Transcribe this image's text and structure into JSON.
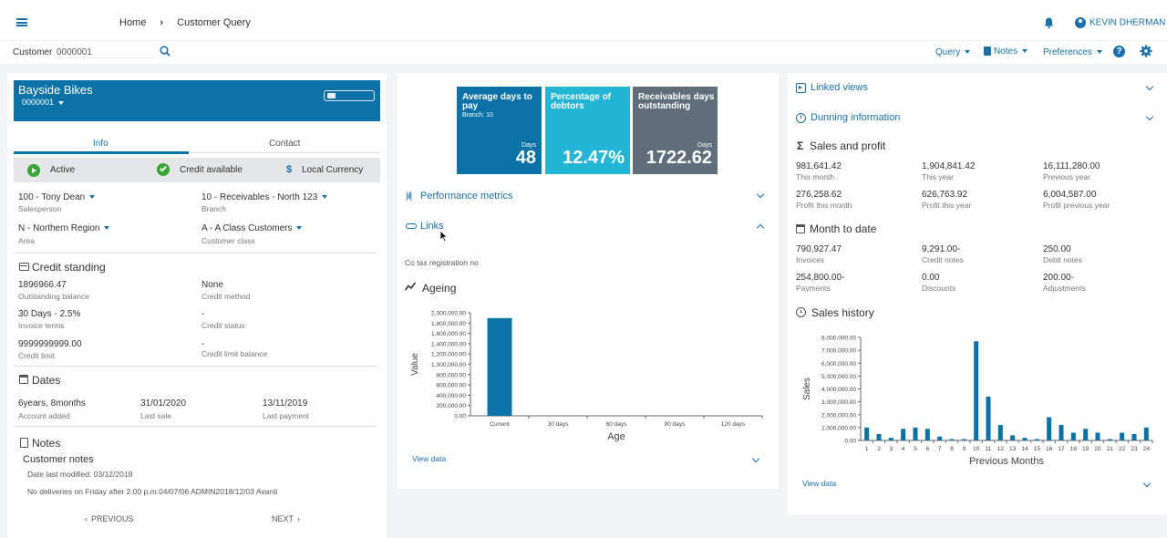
{
  "header": {
    "menu_icon": "hamburger-icon",
    "breadcrumb": [
      "Home",
      "Customer Query"
    ],
    "user_name": "KEVIN DHERMAN"
  },
  "search": {
    "label": "Customer",
    "value": "0000001"
  },
  "toolbar": {
    "query": "Query",
    "notes": "Notes",
    "preferences": "Preferences"
  },
  "customer": {
    "name": "Bayside Bikes",
    "code": "0000001",
    "tabs": [
      "Info",
      "Contact"
    ],
    "status": {
      "active": "Active",
      "credit": "Credit available",
      "currency": "Local Currency"
    },
    "salesperson": {
      "value": "100 - Tony Dean",
      "label": "Salesperson"
    },
    "branch": {
      "value": "10 - Receivables - North 123",
      "label": "Branch"
    },
    "area": {
      "value": "N - Northern Region",
      "label": "Area"
    },
    "customer_class": {
      "value": "A - A Class Customers",
      "label": "Customer class"
    }
  },
  "credit_standing": {
    "title": "Credit standing",
    "outstanding_balance": {
      "value": "1896966.47",
      "label": "Outstanding balance"
    },
    "credit_method": {
      "value": "None",
      "label": "Credit method"
    },
    "invoice_terms": {
      "value": "30 Days - 2.5%",
      "label": "Invoice terms"
    },
    "credit_status": {
      "value": "-",
      "label": "Credit status"
    },
    "credit_limit": {
      "value": "9999999999.00",
      "label": "Credit limit"
    },
    "credit_limit_balance": {
      "value": "-",
      "label": "Credit limit balance"
    }
  },
  "dates": {
    "title": "Dates",
    "account_added": {
      "value": "6years, 8months",
      "label": "Account added"
    },
    "last_sale": {
      "value": "31/01/2020",
      "label": "Last sale"
    },
    "last_payment": {
      "value": "13/11/2019",
      "label": "Last payment"
    }
  },
  "notes": {
    "title": "Notes",
    "subtitle": "Customer notes",
    "date_modified": "Date last modified: 03/12/2018",
    "text": "No deliveries on Friday after 2.00 p.m.04/07/06 ADMIN2018/12/03 Avanti"
  },
  "pager": {
    "previous": "PREVIOUS",
    "next": "NEXT"
  },
  "tiles": [
    {
      "title": "Average days to pay",
      "sub": "Branch: 10",
      "unit": "Days",
      "value": "48",
      "color": "#0b72a8"
    },
    {
      "title": "Percentage of debtors",
      "sub": "",
      "unit": "",
      "value": "12.47%",
      "color": "#22b5d6"
    },
    {
      "title": "Receivables days outstanding",
      "sub": "",
      "unit": "Days",
      "value": "1722.62",
      "color": "#5f6e7a"
    }
  ],
  "sections": {
    "performance": "Performance metrics",
    "links": "Links",
    "tax": "Co tax registration no",
    "ageing": "Ageing",
    "view_data": "View data"
  },
  "right": {
    "linked_views": "Linked views",
    "dunning": "Dunning information",
    "sales_profit": {
      "title": "Sales and profit",
      "items": [
        {
          "value": "981,641.42",
          "label": "This month"
        },
        {
          "value": "1,904,841.42",
          "label": "This year"
        },
        {
          "value": "16,111,280.00",
          "label": "Previous year"
        },
        {
          "value": "276,258.62",
          "label": "Profit this month"
        },
        {
          "value": "626,763.92",
          "label": "Profit this year"
        },
        {
          "value": "6,004,587.00",
          "label": "Profit previous year"
        }
      ]
    },
    "month_to_date": {
      "title": "Month to date",
      "items": [
        {
          "value": "790,927.47",
          "label": "Invoices"
        },
        {
          "value": "9,291.00-",
          "label": "Credit notes"
        },
        {
          "value": "250.00",
          "label": "Debit notes"
        },
        {
          "value": "254,800.00-",
          "label": "Payments"
        },
        {
          "value": "0.00",
          "label": "Discounts"
        },
        {
          "value": "200.00-",
          "label": "Adjustments"
        }
      ]
    },
    "sales_history": "Sales history",
    "view_data": "View data"
  },
  "chart_data": [
    {
      "type": "bar",
      "title": "",
      "xlabel": "Age",
      "ylabel": "Value",
      "categories": [
        "Current",
        "30 days",
        "60 days",
        "90 days",
        "120 days"
      ],
      "values": [
        1896966.47,
        0,
        0,
        0,
        0
      ],
      "ylim": [
        0,
        2000000
      ],
      "yticks": [
        "2,000,000.00",
        "1,800,000.00",
        "1,600,000.00",
        "1,400,000.00",
        "1,200,000.00",
        "1,000,000.00",
        "800,000.00",
        "600,000.00",
        "400,000.00",
        "200,000.00",
        "0.00"
      ],
      "color": "#0b72a8"
    },
    {
      "type": "bar",
      "title": "",
      "xlabel": "Previous Months",
      "ylabel": "Sales",
      "categories": [
        "1",
        "2",
        "3",
        "4",
        "5",
        "6",
        "7",
        "8",
        "9",
        "10",
        "11",
        "12",
        "13",
        "14",
        "15",
        "16",
        "17",
        "18",
        "19",
        "20",
        "21",
        "22",
        "23",
        "24"
      ],
      "values": [
        1000000,
        500000,
        200000,
        900000,
        1000000,
        900000,
        300000,
        100000,
        100000,
        7700000,
        3400000,
        1200000,
        400000,
        200000,
        100000,
        1800000,
        1200000,
        600000,
        900000,
        600000,
        100000,
        600000,
        500000,
        1000000
      ],
      "ylim": [
        0,
        8000000
      ],
      "yticks": [
        "8,000,000.00",
        "7,000,000.00",
        "6,000,000.00",
        "5,000,000.00",
        "4,000,000.00",
        "3,000,000.00",
        "2,000,000.00",
        "1,000,000.00",
        "0.00"
      ],
      "color": "#0b72a8"
    }
  ]
}
